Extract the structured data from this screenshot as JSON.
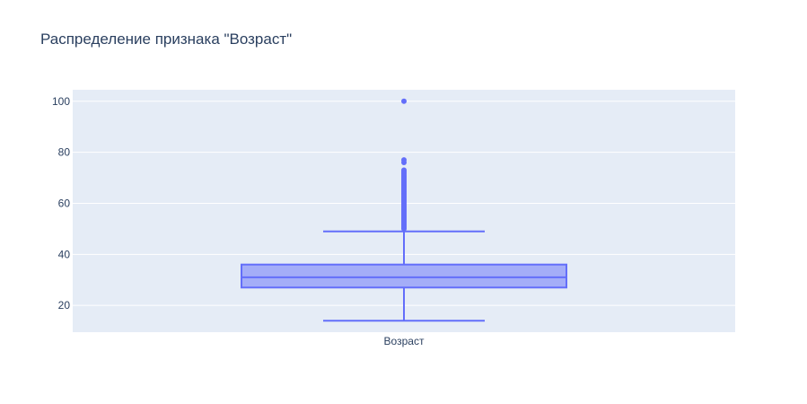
{
  "chart_data": {
    "type": "box",
    "title": "Распределение признака \"Возраст\"",
    "xlabel": "",
    "ylabel": "",
    "categories": [
      "Возраст"
    ],
    "ylim": [
      9.5,
      104.5
    ],
    "yticks": [
      20,
      40,
      60,
      80,
      100
    ],
    "grid": true,
    "legend": "none",
    "box": {
      "category": "Возраст",
      "lower_whisker": 14,
      "q1": 27,
      "median": 31,
      "q3": 36,
      "upper_whisker": 49
    },
    "outliers": [
      50,
      50.5,
      51,
      51.5,
      52,
      52.5,
      53,
      53.5,
      54,
      54.5,
      55,
      55.5,
      56,
      56.5,
      57,
      57.5,
      58,
      58.5,
      59,
      59.5,
      60,
      60.5,
      61,
      61.5,
      62,
      62.5,
      63,
      63.5,
      64,
      64.5,
      65,
      65.5,
      66,
      66.5,
      67,
      67.5,
      68,
      68.5,
      69,
      69.5,
      70,
      70.5,
      71,
      71.5,
      72,
      72.5,
      73,
      76,
      77,
      100
    ],
    "colors": {
      "box_line": "#636efa",
      "box_fill": "rgba(99,110,250,0.5)",
      "plot_bg": "#e5ecf6",
      "grid": "#ffffff",
      "text": "#2a3f5f"
    }
  }
}
